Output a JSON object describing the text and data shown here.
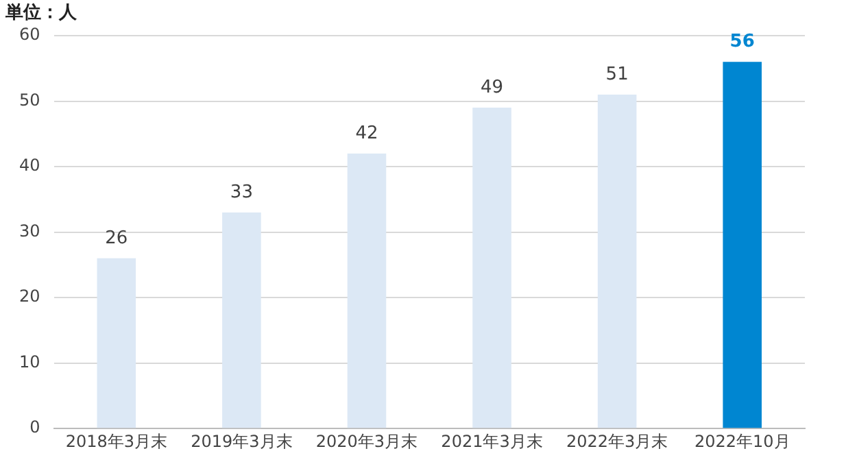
{
  "chart_data": {
    "type": "bar",
    "ylabel": "単位：人",
    "categories": [
      "2018年3月末",
      "2019年3月末",
      "2020年3月末",
      "2021年3月末",
      "2022年3月末",
      "2022年10月"
    ],
    "values": [
      26,
      33,
      42,
      49,
      51,
      56
    ],
    "colors": [
      "#dce8f5",
      "#dce8f5",
      "#dce8f5",
      "#dce8f5",
      "#dce8f5",
      "#0086d1"
    ],
    "ylim": [
      0,
      60
    ],
    "yticks": [
      0,
      10,
      20,
      30,
      40,
      50,
      60
    ],
    "grid": "y",
    "data_labels": true,
    "legend": false
  }
}
